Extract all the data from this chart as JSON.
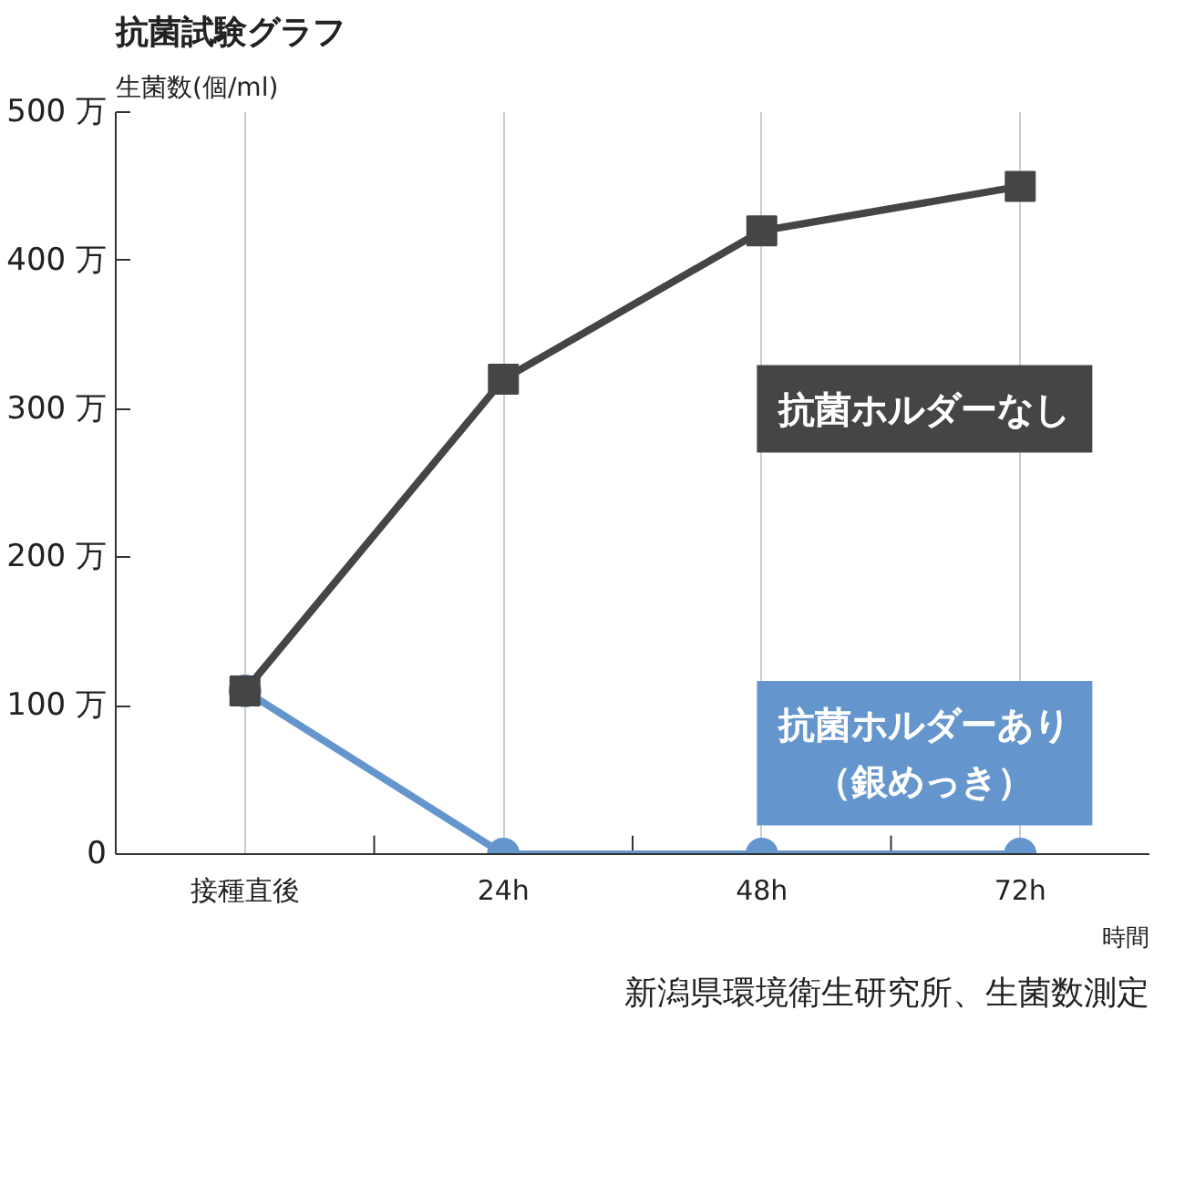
{
  "chart_data": {
    "type": "line",
    "title": "抗菌試験グラフ",
    "ylabel": "生菌数(個/ml)",
    "xlabel": "時間",
    "categories": [
      "接種直後",
      "24h",
      "48h",
      "72h"
    ],
    "series": [
      {
        "name": "抗菌ホルダーなし",
        "color": "#454545",
        "marker": "square",
        "values": [
          110,
          320,
          420,
          450
        ]
      },
      {
        "name": "抗菌ホルダーあり（銀めっき）",
        "color": "#6496cd",
        "marker": "circle",
        "values": [
          110,
          0,
          0,
          0
        ]
      }
    ],
    "ylim": [
      0,
      500
    ],
    "yticks": [
      {
        "value": 0,
        "label": "0"
      },
      {
        "value": 100,
        "label": "100 万"
      },
      {
        "value": 200,
        "label": "200 万"
      },
      {
        "value": 300,
        "label": "300 万"
      },
      {
        "value": 400,
        "label": "400 万"
      },
      {
        "value": 500,
        "label": "500 万"
      }
    ],
    "grid": "x",
    "legend": false,
    "annotations": [
      "新潟県環境衛生研究所、生菌数測定"
    ]
  }
}
